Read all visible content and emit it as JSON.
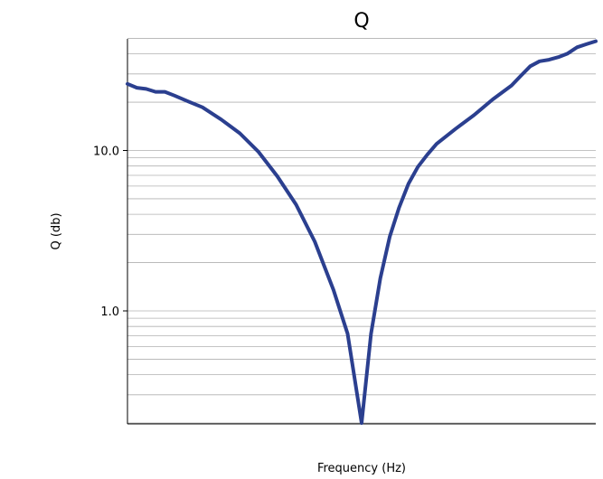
{
  "chart_data": {
    "type": "line",
    "title": "Q",
    "xlabel": "Frequency (Hz)",
    "ylabel": "Q (db)",
    "y_scale": "log",
    "ylim": [
      0.2,
      50
    ],
    "yticks": [
      {
        "value": 1.0,
        "label": "1.0"
      },
      {
        "value": 10.0,
        "label": "10.0"
      }
    ],
    "grid": true,
    "series": [
      {
        "color": "#2b3f8f",
        "x": [
          0.0,
          0.02,
          0.04,
          0.06,
          0.08,
          0.1,
          0.13,
          0.16,
          0.2,
          0.24,
          0.28,
          0.32,
          0.36,
          0.4,
          0.44,
          0.47,
          0.5,
          0.52,
          0.54,
          0.56,
          0.58,
          0.6,
          0.62,
          0.64,
          0.66,
          0.7,
          0.74,
          0.78,
          0.82,
          0.84,
          0.86,
          0.88,
          0.9,
          0.92,
          0.94,
          0.96,
          0.98,
          1.0
        ],
        "y": [
          26.0,
          24.6,
          24.2,
          23.2,
          23.2,
          22.0,
          20.2,
          18.6,
          15.6,
          12.8,
          9.8,
          6.9,
          4.6,
          2.7,
          1.35,
          0.72,
          0.2,
          0.72,
          1.6,
          2.9,
          4.4,
          6.2,
          7.9,
          9.4,
          11.0,
          13.6,
          16.6,
          20.8,
          25.4,
          29.2,
          33.5,
          36.0,
          36.8,
          38.2,
          40.2,
          44.0,
          46.0,
          48.0
        ]
      }
    ]
  }
}
